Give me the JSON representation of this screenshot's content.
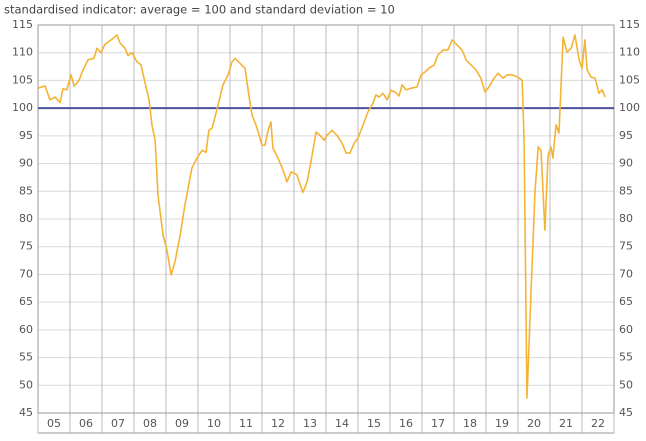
{
  "chart_data": {
    "type": "line",
    "title": "standardised indicator: average = 100 and standard deviation = 10",
    "x": [
      2005.0,
      2005.22,
      2005.375,
      2005.53,
      2005.69,
      2005.78,
      2005.9,
      2006.03,
      2006.13,
      2006.28,
      2006.38,
      2006.56,
      2006.75,
      2006.84,
      2006.97,
      2007.09,
      2007.28,
      2007.47,
      2007.56,
      2007.72,
      2007.81,
      2007.94,
      2008.09,
      2008.22,
      2008.34,
      2008.47,
      2008.56,
      2008.66,
      2008.75,
      2008.91,
      2009.03,
      2009.16,
      2009.28,
      2009.44,
      2009.59,
      2009.81,
      2009.97,
      2010.13,
      2010.25,
      2010.34,
      2010.44,
      2010.63,
      2010.78,
      2010.94,
      2011.06,
      2011.16,
      2011.31,
      2011.47,
      2011.59,
      2011.69,
      2011.81,
      2011.91,
      2012.0,
      2012.09,
      2012.19,
      2012.28,
      2012.34,
      2012.5,
      2012.66,
      2012.78,
      2012.91,
      2013.09,
      2013.19,
      2013.28,
      2013.41,
      2013.53,
      2013.69,
      2013.81,
      2013.94,
      2014.03,
      2014.19,
      2014.34,
      2014.5,
      2014.63,
      2014.75,
      2014.88,
      2015.0,
      2015.16,
      2015.31,
      2015.47,
      2015.56,
      2015.66,
      2015.78,
      2015.91,
      2016.03,
      2016.16,
      2016.28,
      2016.38,
      2016.5,
      2016.66,
      2016.84,
      2016.97,
      2017.09,
      2017.22,
      2017.38,
      2017.5,
      2017.66,
      2017.81,
      2017.94,
      2018.09,
      2018.25,
      2018.38,
      2018.53,
      2018.69,
      2018.84,
      2018.97,
      2019.09,
      2019.25,
      2019.38,
      2019.53,
      2019.66,
      2019.81,
      2020.0,
      2020.13,
      2020.19,
      2020.28,
      2020.41,
      2020.53,
      2020.63,
      2020.72,
      2020.84,
      2020.94,
      2021.03,
      2021.09,
      2021.19,
      2021.28,
      2021.41,
      2021.53,
      2021.66,
      2021.78,
      2021.91,
      2022.0,
      2022.09,
      2022.16,
      2022.28,
      2022.41,
      2022.53,
      2022.63,
      2022.72
    ],
    "series": [
      {
        "color": "#f5b335",
        "values": [
          103.6,
          104,
          101.5,
          102,
          101,
          103.5,
          103.3,
          106,
          104,
          105,
          106.5,
          108.7,
          109,
          110.8,
          110,
          111.5,
          112.3,
          113.2,
          111.8,
          110.8,
          109.5,
          110,
          108.4,
          107.8,
          104.7,
          101.5,
          97,
          94.2,
          84.3,
          77,
          74.4,
          69.9,
          72.3,
          77,
          82.5,
          89.2,
          91,
          92.4,
          92,
          96,
          96.4,
          100.6,
          104.2,
          106,
          108.3,
          109,
          108.1,
          107.2,
          102.3,
          98.7,
          97,
          95.1,
          93.3,
          93.3,
          96,
          97.5,
          92.8,
          91,
          88.8,
          86.7,
          88.5,
          88,
          86.2,
          84.8,
          86.7,
          90.3,
          95.7,
          95.1,
          94.2,
          95.1,
          96,
          95.1,
          93.7,
          91.9,
          91.9,
          93.7,
          94.6,
          97,
          99.3,
          100.9,
          102.4,
          102,
          102.7,
          101.5,
          103.2,
          102.9,
          102.2,
          104.2,
          103.3,
          103.6,
          103.8,
          106,
          106.5,
          107.2,
          107.8,
          109.6,
          110.5,
          110.5,
          112.3,
          111.4,
          110.5,
          108.7,
          107.8,
          106.9,
          105.4,
          102.9,
          103.8,
          105.4,
          106.3,
          105.4,
          106,
          106,
          105.6,
          105,
          94.2,
          47.7,
          67.2,
          84.8,
          93,
          92.4,
          78,
          91.5,
          93,
          91,
          97,
          95.5,
          112.8,
          110.1,
          110.8,
          113.2,
          108.7,
          107.2,
          112.3,
          106.9,
          105.6,
          105.4,
          102.7,
          103.3,
          102
        ]
      }
    ],
    "reference_line": 100,
    "reference_color": "#4a4fa0",
    "xlim": [
      2005,
      2023
    ],
    "xticks": [
      {
        "value": 2005.5,
        "label": "05"
      },
      {
        "value": 2006.5,
        "label": "06"
      },
      {
        "value": 2007.5,
        "label": "07"
      },
      {
        "value": 2008.5,
        "label": "08"
      },
      {
        "value": 2009.5,
        "label": "09"
      },
      {
        "value": 2010.5,
        "label": "10"
      },
      {
        "value": 2011.5,
        "label": "11"
      },
      {
        "value": 2012.5,
        "label": "12"
      },
      {
        "value": 2013.5,
        "label": "13"
      },
      {
        "value": 2014.5,
        "label": "14"
      },
      {
        "value": 2015.5,
        "label": "15"
      },
      {
        "value": 2016.5,
        "label": "16"
      },
      {
        "value": 2017.5,
        "label": "17"
      },
      {
        "value": 2018.5,
        "label": "18"
      },
      {
        "value": 2019.5,
        "label": "19"
      },
      {
        "value": 2020.5,
        "label": "20"
      },
      {
        "value": 2021.5,
        "label": "21"
      },
      {
        "value": 2022.5,
        "label": "22"
      }
    ],
    "xgrid": [
      2005,
      2006,
      2007,
      2008,
      2009,
      2010,
      2011,
      2012,
      2013,
      2014,
      2015,
      2016,
      2017,
      2018,
      2019,
      2020,
      2021,
      2022,
      2023
    ],
    "ylim": [
      45,
      115
    ],
    "yticks": [
      45,
      50,
      55,
      60,
      65,
      70,
      75,
      80,
      85,
      90,
      95,
      100,
      105,
      110,
      115
    ],
    "y2lim": [
      45,
      115
    ],
    "y2ticks": [
      45,
      50,
      55,
      60,
      65,
      70,
      75,
      80,
      85,
      90,
      95,
      100,
      105,
      110,
      115
    ],
    "grid": true
  }
}
